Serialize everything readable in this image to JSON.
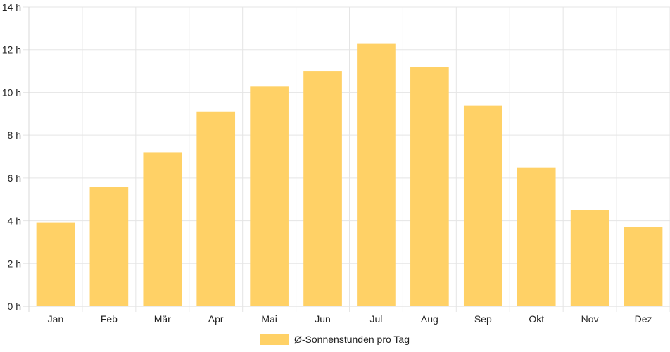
{
  "chart_data": {
    "type": "bar",
    "categories": [
      "Jan",
      "Feb",
      "Mär",
      "Apr",
      "Mai",
      "Jun",
      "Jul",
      "Aug",
      "Sep",
      "Okt",
      "Nov",
      "Dez"
    ],
    "series": [
      {
        "name": "Ø-Sonnenstunden pro Tag",
        "values": [
          3.9,
          5.6,
          7.2,
          9.1,
          10.3,
          11.0,
          12.3,
          11.2,
          9.4,
          6.5,
          4.5,
          3.7
        ],
        "color": "#FFD166"
      }
    ],
    "y_ticks": [
      "0 h",
      "2 h",
      "4 h",
      "6 h",
      "8 h",
      "10 h",
      "12 h",
      "14 h"
    ],
    "ylim": [
      0,
      14
    ],
    "y_step": 2,
    "grid": true,
    "legend": "bottom-center",
    "title": "",
    "xlabel": "",
    "ylabel": ""
  }
}
